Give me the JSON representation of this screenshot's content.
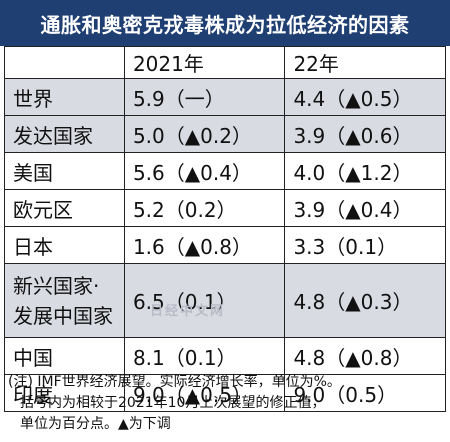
{
  "title": "通胀和奥密克戎毒株成为拉低经济的因素",
  "header": {
    "col_label": "",
    "col_2021": "2021年",
    "col_2022": "22年"
  },
  "rows": [
    {
      "label": "世界",
      "v2021": "5.9（一）",
      "v2022": "4.4（▲0.5）",
      "shaded": true
    },
    {
      "label": "发达国家",
      "v2021": "5.0（▲0.2）",
      "v2022": "3.9（▲0.6）",
      "shaded": true
    },
    {
      "label": "美国",
      "v2021": "5.6（▲0.4）",
      "v2022": "4.0（▲1.2）",
      "shaded": false
    },
    {
      "label": "欧元区",
      "v2021": "5.2（0.2）",
      "v2022": "3.9（▲0.4）",
      "shaded": false
    },
    {
      "label": "日本",
      "v2021": "1.6（▲0.8）",
      "v2022": "3.3（0.1）",
      "shaded": false
    },
    {
      "label_line1": "新兴国家·",
      "label_line2": "发展中国家",
      "v2021": "6.5（0.1）",
      "v2022": "4.8（▲0.3）",
      "shaded": true
    },
    {
      "label": "中国",
      "v2021": "8.1（0.1）",
      "v2022": "4.8（▲0.8）",
      "shaded": false
    },
    {
      "label": "印度",
      "v2021": "9.0（▲0.5）",
      "v2022": "9.0（0.5）",
      "shaded": false
    }
  ],
  "watermark": "日经中文网",
  "notes": [
    "(注) IMF世界经济展望。实际经济增长率，单位为%。",
    "括号内为相较于2021年10月上次展望的修正值，",
    "单位为百分点。▲为下调"
  ]
}
